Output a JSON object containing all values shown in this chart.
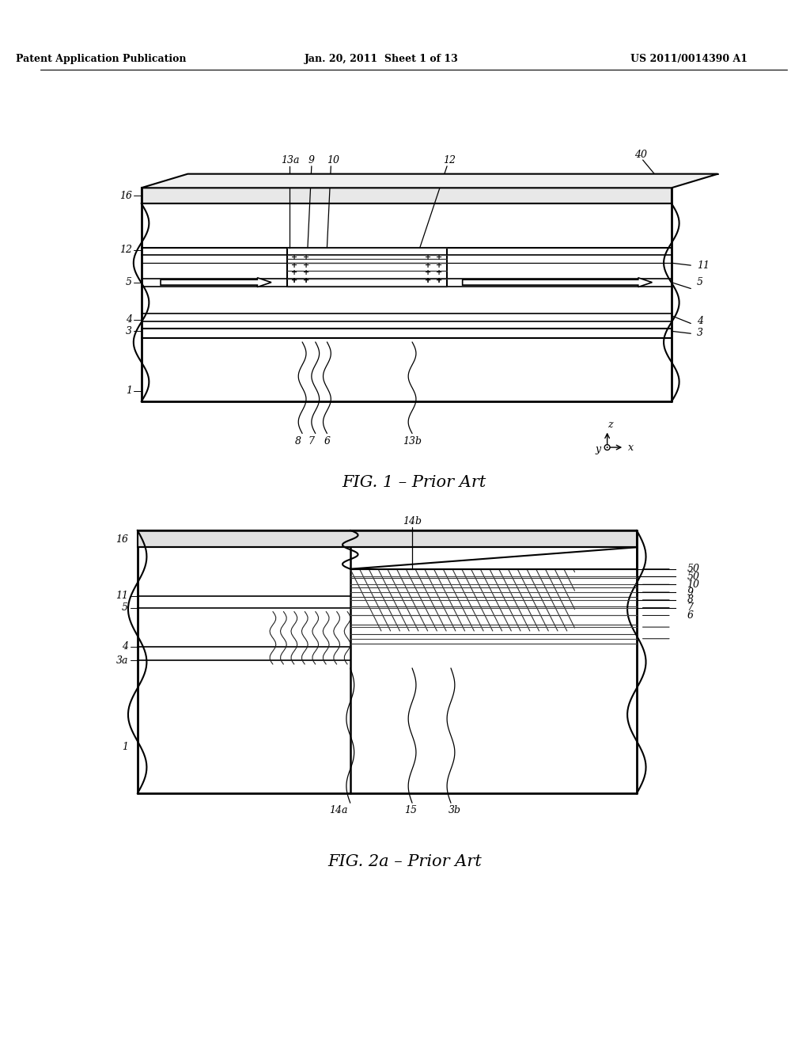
{
  "header_left": "Patent Application Publication",
  "header_mid": "Jan. 20, 2011  Sheet 1 of 13",
  "header_right": "US 2011/0014390 A1",
  "fig1_caption": "FIG. 1 – Prior Art",
  "fig2_caption": "FIG. 2a – Prior Art",
  "bg_color": "#ffffff",
  "line_color": "#000000"
}
